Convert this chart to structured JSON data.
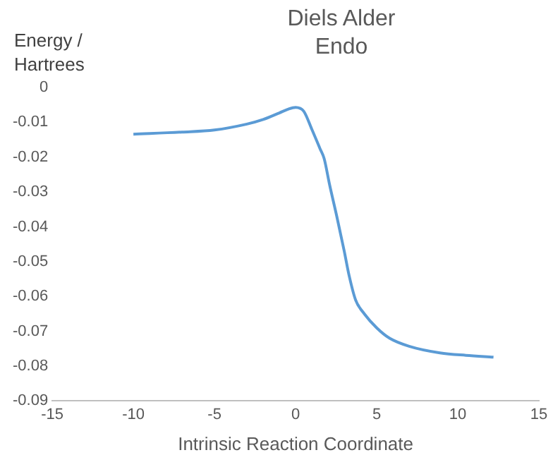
{
  "chart_data": {
    "type": "line",
    "title": "Diels Alder Endo",
    "xlabel": "Intrinsic Reaction Coordinate",
    "ylabel": "Energy / Hartrees",
    "series": [
      {
        "color": "#5b9bd5",
        "x": [
          -10,
          -7,
          -5,
          -3,
          -2,
          -1,
          -0.5,
          0,
          0.5,
          1,
          1.5,
          1.76,
          2.1,
          2.54,
          3,
          3.3,
          3.7,
          4.24,
          5,
          5.8,
          7,
          8.9,
          10.5,
          12.2
        ],
        "values": [
          -0.0134,
          -0.0128,
          -0.0122,
          -0.0105,
          -0.0092,
          -0.0073,
          -0.0063,
          -0.0057,
          -0.0068,
          -0.012,
          -0.0175,
          -0.0204,
          -0.028,
          -0.037,
          -0.047,
          -0.054,
          -0.061,
          -0.065,
          -0.069,
          -0.072,
          -0.0743,
          -0.0762,
          -0.0769,
          -0.0774
        ]
      }
    ],
    "xlim": [
      -15,
      15
    ],
    "xticks": [
      -15,
      -10,
      -5,
      0,
      5,
      10,
      15
    ],
    "ylim": [
      -0.09,
      0
    ],
    "yticks": [
      0,
      -0.01,
      -0.02,
      -0.03,
      -0.04,
      -0.05,
      -0.06,
      -0.07,
      -0.08,
      -0.09
    ],
    "grid": false,
    "legend": false,
    "marker": "none",
    "line_style": "solid"
  }
}
